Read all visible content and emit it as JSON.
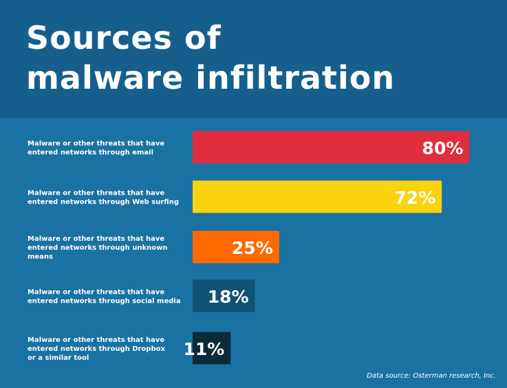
{
  "title_lines": [
    "Sources of",
    "malware infiltration"
  ],
  "source": "Data source: Osterman research, Inc.",
  "colors": {
    "header_bg": "#165f8c",
    "body_bg": "#1a72a3"
  },
  "chart_data": {
    "type": "bar",
    "orientation": "horizontal",
    "title": "Sources of malware infiltration",
    "categories": [
      [
        "Malware or other threats that have",
        "entered networks through email"
      ],
      [
        "Malware or other threats that have",
        "entered networks through Web surfing"
      ],
      [
        "Malware or other threats that have",
        "entered networks through unknown",
        "means"
      ],
      [
        "Malware or other threats that have",
        "entered networks through social media"
      ],
      [
        "Malware or other threats that have",
        "entered networks through Dropbox",
        "or a similar tool"
      ]
    ],
    "values": [
      80,
      72,
      25,
      18,
      11
    ],
    "value_labels": [
      "80%",
      "72%",
      "25%",
      "18%",
      "11%"
    ],
    "bar_colors": [
      "#e02e3d",
      "#f8d30e",
      "#ff6a00",
      "#0f5274",
      "#0b2a3a"
    ],
    "xlim": [
      0,
      100
    ],
    "grid": false,
    "legend": "none"
  }
}
